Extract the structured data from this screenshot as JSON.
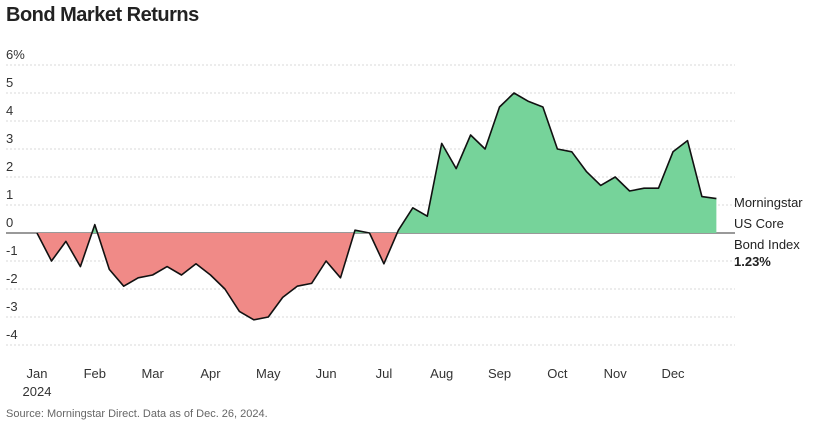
{
  "chart_data": {
    "type": "area",
    "title": "Bond Market Returns",
    "source": "Source: Morningstar Direct. Data as of Dec. 26, 2024.",
    "categories": [
      "Jan",
      null,
      null,
      null,
      "Feb",
      null,
      null,
      null,
      "Mar",
      null,
      null,
      null,
      "Apr",
      null,
      null,
      null,
      "May",
      null,
      null,
      null,
      "Jun",
      null,
      null,
      null,
      "Jul",
      null,
      null,
      null,
      "Aug",
      null,
      null,
      null,
      "Sep",
      null,
      null,
      null,
      "Oct",
      null,
      null,
      null,
      "Nov",
      null,
      null,
      null,
      "Dec",
      null,
      null,
      null
    ],
    "year_label": "2024",
    "series": [
      {
        "name": "Morningstar US Core Bond Index",
        "color": "#111111",
        "values": [
          0,
          -1.0,
          -0.3,
          -1.2,
          0.3,
          -1.3,
          -1.9,
          -1.6,
          -1.5,
          -1.2,
          -1.5,
          -1.1,
          -1.5,
          -2.0,
          -2.8,
          -3.1,
          -3.0,
          -2.3,
          -1.9,
          -1.8,
          -1.0,
          -1.6,
          0.1,
          0.0,
          -1.1,
          0.1,
          0.9,
          0.6,
          3.2,
          2.3,
          3.5,
          3.0,
          4.5,
          5.0,
          4.7,
          4.5,
          3.0,
          2.9,
          2.2,
          1.7,
          2.0,
          1.5,
          1.6,
          1.6,
          2.9,
          3.3,
          1.3,
          1.23
        ],
        "last_value_label": "1.23%"
      }
    ],
    "positive_color": "#76d39a",
    "negative_color": "#f08a87",
    "ylim": [
      -4,
      6
    ],
    "yticks": [
      -4,
      -3,
      -2,
      -1,
      0,
      1,
      2,
      3,
      4,
      5,
      {
        "value": 6,
        "label": "6%"
      }
    ],
    "grid": true
  }
}
